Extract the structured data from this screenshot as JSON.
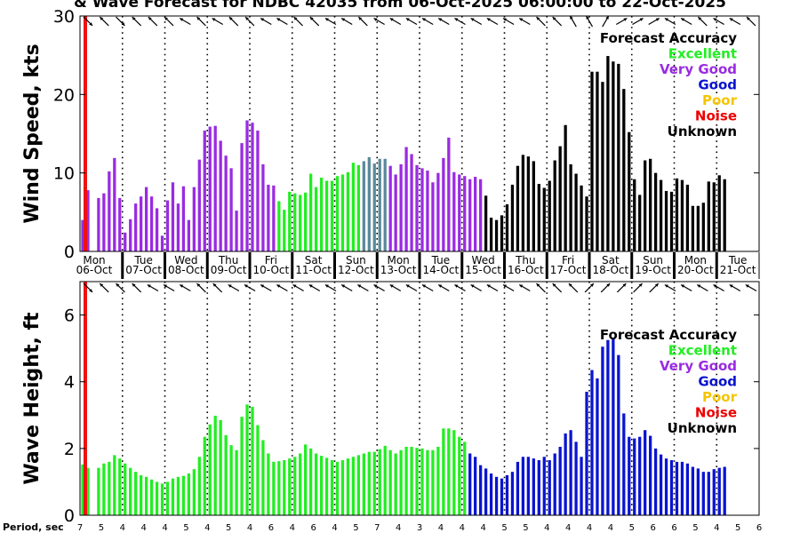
{
  "title": "& Wave Forecast for NDBC 42035 from 06-Oct-2025 06:00:00 to 22-Oct-2025",
  "period_label": "Period, sec",
  "periods": [
    "7",
    "5",
    "4",
    "4",
    "4",
    "5",
    "4",
    "5",
    "4",
    "6",
    "4",
    "6",
    "4",
    "5",
    "7",
    "4",
    "3",
    "4",
    "4",
    "4",
    "5",
    "5",
    "4",
    "4",
    "4",
    "4",
    "5",
    "6",
    "6",
    "5",
    "4",
    "5",
    "6"
  ],
  "day_labels": [
    {
      "dow": "Mon",
      "date": "06-Oct"
    },
    {
      "dow": "Tue",
      "date": "07-Oct"
    },
    {
      "dow": "Wed",
      "date": "08-Oct"
    },
    {
      "dow": "Thu",
      "date": "09-Oct"
    },
    {
      "dow": "Fri",
      "date": "10-Oct"
    },
    {
      "dow": "Sat",
      "date": "11-Oct"
    },
    {
      "dow": "Sun",
      "date": "12-Oct"
    },
    {
      "dow": "Mon",
      "date": "13-Oct"
    },
    {
      "dow": "Tue",
      "date": "14-Oct"
    },
    {
      "dow": "Wed",
      "date": "15-Oct"
    },
    {
      "dow": "Thu",
      "date": "16-Oct"
    },
    {
      "dow": "Fri",
      "date": "17-Oct"
    },
    {
      "dow": "Sat",
      "date": "18-Oct"
    },
    {
      "dow": "Sun",
      "date": "19-Oct"
    },
    {
      "dow": "Mon",
      "date": "20-Oct"
    },
    {
      "dow": "Tue",
      "date": "21-Oct"
    }
  ],
  "legend": {
    "title": "Forecast Accuracy",
    "items": [
      {
        "label": "Excellent",
        "color": "#22ee22"
      },
      {
        "label": "Very Good",
        "color": "#9a2be2"
      },
      {
        "label": "Good",
        "color": "#0a14d0"
      },
      {
        "label": "Poor",
        "color": "#f5c400"
      },
      {
        "label": "Noise",
        "color": "#ee0000"
      },
      {
        "label": "Unknown",
        "color": "#000000"
      }
    ]
  },
  "colors": {
    "excellent": "#22ee22",
    "very_good": "#9a2be2",
    "good": "#0a14d0",
    "unknown": "#000000",
    "now_line": "#ee1111",
    "transition": "#5a8a9a"
  },
  "chart_data": [
    {
      "type": "bar",
      "name": "wind",
      "ylabel": "Wind Speed, kts",
      "ylim": [
        0,
        30
      ],
      "yticks": [
        0,
        10,
        20,
        30
      ],
      "x_unit": "hours since 06-Oct-2025 00:00",
      "x_range": [
        0,
        384
      ],
      "now_hour": 3,
      "start_hour": 0,
      "step_hours": 3,
      "values": [
        4,
        7.8,
        0,
        6.8,
        7.4,
        10.2,
        11.9,
        6.8,
        2.4,
        4.1,
        6.1,
        7.0,
        8.2,
        7.0,
        5.5,
        2.0,
        6.5,
        8.8,
        6.1,
        8.3,
        4.0,
        8.2,
        11.7,
        15.4,
        15.9,
        16.0,
        14.1,
        12.2,
        10.6,
        5.2,
        13.8,
        16.7,
        16.4,
        15.4,
        11.1,
        8.5,
        8.4,
        6.4,
        5.3,
        7.6,
        7.4,
        7.2,
        7.5,
        9.9,
        8.2,
        9.4,
        9.0,
        9.0,
        9.6,
        9.8,
        10.1,
        11.3,
        11.0,
        11.5,
        12.0,
        11.2,
        11.8,
        11.8,
        10.9,
        9.8,
        11.1,
        13.3,
        12.4,
        11.0,
        10.6,
        10.3,
        8.8,
        10.0,
        11.9,
        14.5,
        10.1,
        9.8,
        9.6,
        9.2,
        9.5,
        9.2,
        7.1,
        4.3,
        4.0,
        4.6,
        6.0,
        8.5,
        10.9,
        12.3,
        12.1,
        11.5,
        8.6,
        8.1,
        9.0,
        11.6,
        13.4,
        16.1,
        11.1,
        9.9,
        8.4,
        7.0,
        22.9,
        22.9,
        21.6,
        24.9,
        24.2,
        23.9,
        20.7,
        15.2,
        9.2,
        7.2,
        11.6,
        11.8,
        10.0,
        9.1,
        7.7,
        7.6,
        9.3,
        9.1,
        8.5,
        5.8,
        5.8,
        6.2,
        8.9,
        8.8,
        9.7,
        9.2
      ],
      "accuracy": [
        {
          "from": 0,
          "to": 75,
          "class": "very_good"
        },
        {
          "from": 37,
          "to": 75,
          "class": "excellent"
        },
        {
          "from": 42,
          "to": 52,
          "class": "excellent"
        },
        {
          "from": 53,
          "to": 57,
          "class": "transition"
        },
        {
          "from": 58,
          "to": 75,
          "class": "very_good"
        },
        {
          "from": 76,
          "to": 121,
          "class": "unknown"
        }
      ],
      "direction_deg": [
        135,
        315,
        135,
        315,
        315,
        315,
        300,
        315,
        300,
        315,
        315,
        300,
        300,
        315,
        315,
        300,
        300,
        315,
        300,
        300,
        300,
        300,
        300,
        300,
        300,
        300,
        300,
        300,
        315,
        315,
        330,
        330,
        30,
        60,
        60,
        60,
        300,
        300,
        315,
        300,
        300,
        315
      ]
    },
    {
      "type": "bar",
      "name": "wave",
      "ylabel": "Wave Height, ft",
      "ylim": [
        0,
        7
      ],
      "yticks": [
        0,
        2,
        4,
        6
      ],
      "x_unit": "hours since 06-Oct-2025 00:00",
      "x_range": [
        0,
        384
      ],
      "now_hour": 3,
      "start_hour": 0,
      "step_hours": 3,
      "values": [
        1.52,
        1.42,
        0,
        1.42,
        1.55,
        1.6,
        1.8,
        1.7,
        1.55,
        1.42,
        1.3,
        1.2,
        1.15,
        1.07,
        1.0,
        0.95,
        1.0,
        1.1,
        1.15,
        1.18,
        1.25,
        1.38,
        1.75,
        2.35,
        2.72,
        2.98,
        2.85,
        2.4,
        2.1,
        1.95,
        2.95,
        3.32,
        3.25,
        2.7,
        2.25,
        1.85,
        1.6,
        1.62,
        1.65,
        1.7,
        1.75,
        1.85,
        2.12,
        2.0,
        1.85,
        1.78,
        1.72,
        1.65,
        1.6,
        1.65,
        1.7,
        1.75,
        1.8,
        1.85,
        1.9,
        1.9,
        1.98,
        2.08,
        1.95,
        1.85,
        1.95,
        2.05,
        2.05,
        2.02,
        2.0,
        1.95,
        1.95,
        2.05,
        2.6,
        2.6,
        2.55,
        2.35,
        2.2,
        1.85,
        1.75,
        1.5,
        1.4,
        1.25,
        1.15,
        1.1,
        1.2,
        1.3,
        1.6,
        1.75,
        1.75,
        1.7,
        1.65,
        1.75,
        1.65,
        1.85,
        2.05,
        2.45,
        2.55,
        2.2,
        1.75,
        3.7,
        4.35,
        4.1,
        5.05,
        5.25,
        5.3,
        4.8,
        3.05,
        2.35,
        2.3,
        2.35,
        2.55,
        2.38,
        2.0,
        1.82,
        1.7,
        1.65,
        1.6,
        1.6,
        1.55,
        1.45,
        1.4,
        1.3,
        1.3,
        1.38,
        1.42,
        1.45
      ],
      "accuracy": [
        {
          "from": 0,
          "to": 72,
          "class": "excellent"
        },
        {
          "from": 73,
          "to": 121,
          "class": "good"
        }
      ],
      "direction_deg": [
        135,
        315,
        315,
        315,
        300,
        300,
        300,
        315,
        315,
        300,
        300,
        300,
        300,
        300,
        300,
        300,
        300,
        300,
        300,
        300,
        300,
        300,
        300,
        300,
        300,
        300,
        300,
        300,
        315,
        315,
        315,
        45,
        45,
        45,
        45,
        45,
        300,
        300,
        300,
        300,
        300,
        300
      ]
    }
  ]
}
